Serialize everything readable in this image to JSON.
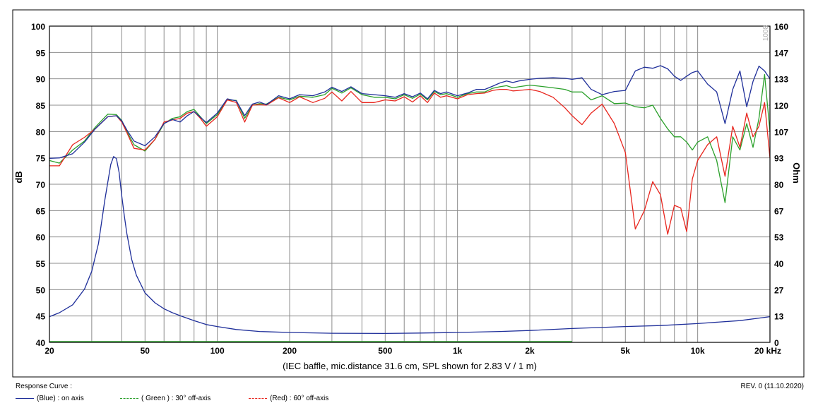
{
  "chart_data": {
    "type": "line",
    "xlabel": "(IEC baffle, mic.distance 31.6 cm, SPL shown for 2.83 V / 1 m)",
    "ylabel": "dB",
    "y2label": "Ohm",
    "x_scale": "log",
    "xlim": [
      20,
      20000
    ],
    "ylim": [
      40,
      100
    ],
    "y2lim": [
      0,
      160
    ],
    "grid": true,
    "x_tick_labels": [
      "20",
      "50",
      "100",
      "200",
      "500",
      "1k",
      "2k",
      "5k",
      "10k",
      "20 kHz"
    ],
    "x_tick_values": [
      20,
      50,
      100,
      200,
      500,
      1000,
      2000,
      5000,
      10000,
      20000
    ],
    "y_ticks": [
      40,
      45,
      50,
      55,
      60,
      65,
      70,
      75,
      80,
      85,
      90,
      95,
      100
    ],
    "y2_tick_labels": [
      "0",
      "13",
      "27",
      "40",
      "53",
      "67",
      "80",
      "93",
      "107",
      "120",
      "133",
      "147",
      "160"
    ],
    "watermark": "1008",
    "series": [
      {
        "name": "(Blue)  : on axis",
        "color": "#1f2f9a",
        "axis": "dB",
        "x": [
          20,
          22,
          25,
          28,
          31,
          35,
          38,
          40,
          42,
          45,
          50,
          55,
          60,
          65,
          70,
          75,
          80,
          85,
          90,
          100,
          110,
          120,
          130,
          140,
          150,
          160,
          180,
          200,
          220,
          250,
          280,
          300,
          330,
          360,
          400,
          450,
          500,
          550,
          600,
          650,
          700,
          750,
          800,
          850,
          900,
          1000,
          1100,
          1200,
          1300,
          1400,
          1500,
          1600,
          1700,
          1800,
          2000,
          2200,
          2500,
          2800,
          3000,
          3300,
          3600,
          4000,
          4500,
          5000,
          5500,
          6000,
          6500,
          7000,
          7500,
          8000,
          8500,
          9000,
          9500,
          10000,
          11000,
          12000,
          13000,
          14000,
          15000,
          16000,
          17000,
          18000,
          19000,
          20000
        ],
        "y": [
          74.9,
          75.0,
          75.8,
          78.0,
          80.5,
          82.8,
          83.0,
          82.0,
          80.3,
          78.2,
          77.3,
          79.0,
          81.5,
          82.3,
          81.8,
          83.0,
          83.8,
          82.7,
          81.7,
          83.5,
          86.2,
          85.8,
          83.0,
          85.2,
          85.6,
          85.1,
          86.8,
          86.2,
          87.0,
          86.8,
          87.5,
          88.4,
          87.6,
          88.5,
          87.2,
          87.0,
          86.8,
          86.5,
          87.2,
          86.6,
          87.3,
          86.2,
          87.8,
          87.2,
          87.5,
          86.8,
          87.3,
          88.0,
          88.0,
          88.6,
          89.2,
          89.6,
          89.3,
          89.6,
          89.9,
          90.1,
          90.2,
          90.1,
          89.9,
          90.2,
          88.0,
          87.0,
          87.6,
          87.8,
          91.5,
          92.2,
          92.0,
          92.5,
          91.9,
          90.5,
          89.7,
          90.5,
          91.2,
          91.5,
          89.0,
          87.5,
          81.5,
          88.0,
          91.5,
          84.7,
          89.5,
          92.4,
          91.5,
          90.0
        ]
      },
      {
        "name": "( Green ) : 30° off-axis",
        "color": "#2aa02a",
        "axis": "dB",
        "x": [
          20,
          22,
          25,
          28,
          31,
          35,
          38,
          40,
          42,
          45,
          50,
          55,
          60,
          65,
          70,
          75,
          80,
          85,
          90,
          100,
          110,
          120,
          130,
          140,
          150,
          160,
          180,
          200,
          220,
          250,
          280,
          300,
          330,
          360,
          400,
          450,
          500,
          550,
          600,
          650,
          700,
          750,
          800,
          850,
          900,
          1000,
          1100,
          1200,
          1300,
          1400,
          1500,
          1600,
          1700,
          1800,
          2000,
          2200,
          2500,
          2800,
          3000,
          3300,
          3600,
          4000,
          4500,
          5000,
          5500,
          6000,
          6500,
          7000,
          7500,
          8000,
          8500,
          9000,
          9500,
          10000,
          11000,
          12000,
          13000,
          14000,
          15000,
          16000,
          17000,
          18000,
          19000,
          20000
        ],
        "y": [
          74.5,
          74.0,
          76.5,
          78.2,
          80.8,
          83.3,
          83.2,
          82.1,
          80.0,
          77.5,
          76.3,
          78.5,
          81.5,
          82.5,
          82.8,
          83.8,
          84.2,
          82.8,
          81.5,
          83.2,
          86.0,
          85.9,
          82.5,
          85.0,
          85.3,
          85.2,
          86.5,
          86.0,
          86.7,
          86.5,
          87.0,
          88.2,
          87.3,
          88.3,
          87.0,
          86.5,
          86.5,
          86.2,
          87.0,
          86.3,
          87.1,
          86.0,
          87.6,
          87.0,
          87.2,
          86.5,
          87.2,
          87.5,
          87.5,
          88.2,
          88.5,
          88.7,
          88.3,
          88.5,
          88.8,
          88.6,
          88.3,
          88.0,
          87.5,
          87.5,
          86.0,
          86.8,
          85.3,
          85.4,
          84.7,
          84.5,
          85.0,
          82.5,
          80.5,
          79.0,
          79.0,
          78.0,
          76.5,
          78.0,
          79.0,
          74.5,
          66.5,
          79.0,
          76.5,
          81.5,
          77.0,
          82.5,
          90.8,
          80.0
        ]
      },
      {
        "name": "(Red) : 60° off-axis",
        "color": "#e8261e",
        "axis": "dB",
        "x": [
          20,
          22,
          25,
          28,
          31,
          35,
          38,
          40,
          42,
          45,
          50,
          55,
          60,
          65,
          70,
          75,
          80,
          85,
          90,
          100,
          110,
          120,
          130,
          140,
          150,
          160,
          180,
          200,
          220,
          250,
          280,
          300,
          330,
          360,
          400,
          450,
          500,
          550,
          600,
          650,
          700,
          750,
          800,
          850,
          900,
          1000,
          1100,
          1200,
          1300,
          1400,
          1500,
          1600,
          1700,
          1800,
          2000,
          2200,
          2500,
          2800,
          3000,
          3300,
          3600,
          4000,
          4500,
          5000,
          5500,
          6000,
          6500,
          7000,
          7500,
          8000,
          8500,
          9000,
          9500,
          10000,
          11000,
          12000,
          13000,
          14000,
          15000,
          16000,
          17000,
          18000,
          19000,
          20000
        ],
        "y": [
          73.5,
          73.5,
          77.5,
          78.9,
          80.5,
          82.8,
          83.0,
          81.8,
          79.8,
          76.8,
          76.5,
          78.5,
          81.8,
          82.2,
          82.5,
          83.5,
          83.8,
          82.5,
          81.0,
          82.8,
          86.0,
          85.5,
          81.8,
          85.0,
          85.1,
          85.0,
          86.4,
          85.5,
          86.6,
          85.5,
          86.3,
          87.5,
          85.8,
          87.6,
          85.5,
          85.5,
          86.0,
          85.8,
          86.6,
          85.6,
          86.8,
          85.5,
          87.3,
          86.5,
          86.8,
          86.2,
          87.0,
          87.2,
          87.3,
          87.8,
          88.0,
          88.0,
          87.7,
          87.8,
          88.0,
          87.6,
          86.5,
          84.5,
          83.0,
          81.3,
          83.5,
          85.2,
          81.5,
          76.0,
          61.5,
          65.0,
          70.5,
          68.0,
          60.5,
          66.0,
          65.5,
          61.0,
          71.0,
          74.5,
          77.5,
          79.0,
          71.5,
          81.0,
          77.0,
          83.5,
          79.0,
          81.0,
          85.5,
          75.0
        ]
      },
      {
        "name": "Impedance",
        "color": "#1f2f9a",
        "axis": "Ohm",
        "x": [
          20,
          22,
          25,
          28,
          30,
          32,
          34,
          36,
          37,
          38,
          39,
          40,
          41,
          42,
          44,
          46,
          50,
          55,
          60,
          65,
          70,
          80,
          90,
          100,
          120,
          150,
          200,
          300,
          500,
          700,
          1000,
          1500,
          2000,
          3000,
          5000,
          7000,
          10000,
          15000,
          20000
        ],
        "y": [
          13.0,
          15.0,
          19.0,
          27.0,
          36.0,
          50.0,
          72.0,
          90.0,
          94.0,
          93.0,
          86.0,
          74.0,
          64.0,
          55.0,
          42.0,
          34.0,
          25.0,
          20.0,
          17.0,
          15.0,
          13.5,
          11.0,
          9.0,
          8.0,
          6.5,
          5.5,
          5.0,
          4.6,
          4.5,
          4.7,
          5.0,
          5.5,
          6.0,
          7.0,
          8.0,
          8.5,
          9.5,
          11.0,
          13.0
        ]
      }
    ]
  },
  "legend": {
    "title": "Response Curve :",
    "items": [
      {
        "label": "(Blue)  : on axis",
        "color": "#1f2f9a"
      },
      {
        "label": "( Green ) : 30° off-axis",
        "color": "#2aa02a"
      },
      {
        "label": "(Red) : 60° off-axis",
        "color": "#e8261e"
      }
    ]
  },
  "revision": "REV. 0 (11.10.2020)"
}
